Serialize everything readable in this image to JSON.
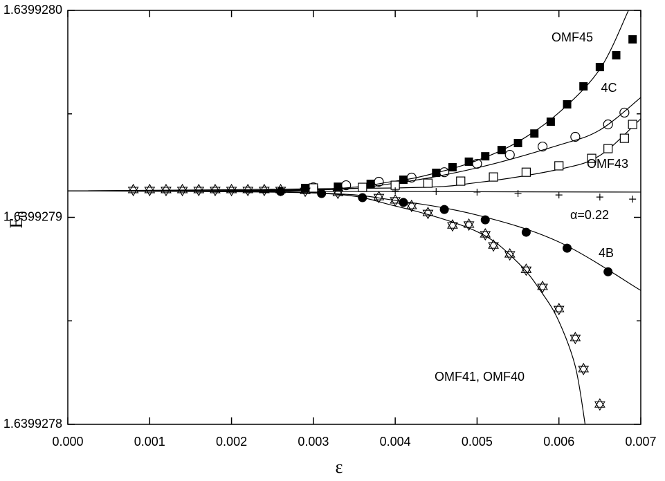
{
  "chart_data": {
    "type": "scatter",
    "xlabel": "ε",
    "ylabel": "E",
    "ylabel_sub": "0",
    "xlim": [
      0,
      0.007
    ],
    "ylim": [
      1.6399278,
      1.639928
    ],
    "xticks": [
      {
        "value": 0,
        "label": "0.000"
      },
      {
        "value": 0.001,
        "label": "0.001"
      },
      {
        "value": 0.002,
        "label": "0.002"
      },
      {
        "value": 0.003,
        "label": "0.003"
      },
      {
        "value": 0.004,
        "label": "0.004"
      },
      {
        "value": 0.005,
        "label": "0.005"
      },
      {
        "value": 0.006,
        "label": "0.006"
      },
      {
        "value": 0.007,
        "label": "0.007"
      }
    ],
    "yticks": [
      {
        "value": 1.6399278,
        "label": "1.6399278"
      },
      {
        "value": 1.6399279,
        "label": "1.6399279"
      },
      {
        "value": 1.639928,
        "label": "1.6399280"
      }
    ],
    "minor_yticks": [
      1.63992785,
      1.63992795
    ],
    "color": "#000000",
    "annotations": [
      "OMF45",
      "4C",
      "OMF43",
      "α=0.22",
      "4B",
      "OMF41, OMF40"
    ],
    "series": [
      {
        "marker": "filled-square",
        "x": [
          0.0029,
          0.0033,
          0.0037,
          0.0041,
          0.0045,
          0.0047,
          0.0049,
          0.0051,
          0.0053,
          0.0055,
          0.0057,
          0.0059,
          0.0061,
          0.0063,
          0.0065,
          0.0067,
          0.0069
        ],
        "values": [
          1.6399279142,
          1.6399279148,
          1.6399279162,
          1.6399279182,
          1.6399279215,
          1.6399279242,
          1.6399279269,
          1.6399279295,
          1.6399279325,
          1.6399279359,
          1.6399279405,
          1.6399279462,
          1.6399279546,
          1.6399279633,
          1.6399279726,
          1.6399279783,
          1.639927986
        ]
      },
      {
        "marker": "open-circle",
        "x": [
          0.003,
          0.0034,
          0.0038,
          0.0042,
          0.0046,
          0.005,
          0.0054,
          0.0058,
          0.0062,
          0.0066,
          0.0068
        ],
        "values": [
          1.6399279145,
          1.6399279155,
          1.6399279172,
          1.6399279192,
          1.6399279218,
          1.6399279259,
          1.6399279302,
          1.6399279342,
          1.6399279389,
          1.6399279449,
          1.6399279506
        ]
      },
      {
        "marker": "open-square",
        "x": [
          0.003,
          0.0036,
          0.004,
          0.0044,
          0.0048,
          0.0052,
          0.0056,
          0.006,
          0.0064,
          0.0066,
          0.0068,
          0.0069
        ],
        "values": [
          1.6399279142,
          1.6399279145,
          1.6399279155,
          1.6399279165,
          1.6399279175,
          1.6399279195,
          1.6399279218,
          1.6399279249,
          1.6399279285,
          1.6399279332,
          1.6399279382,
          1.6399279449
        ]
      },
      {
        "marker": "plus",
        "x": [
          0.004,
          0.0045,
          0.005,
          0.0055,
          0.006,
          0.0065,
          0.0069
        ],
        "values": [
          1.6399279128,
          1.6399279125,
          1.6399279122,
          1.6399279115,
          1.6399279108,
          1.6399279098,
          1.6399279088
        ]
      },
      {
        "marker": "filled-circle",
        "x": [
          0.0026,
          0.0031,
          0.0036,
          0.0041,
          0.0046,
          0.0051,
          0.0056,
          0.0061,
          0.0066
        ],
        "values": [
          1.6399279125,
          1.6399279115,
          1.6399279095,
          1.6399279072,
          1.6399279038,
          1.6399278988,
          1.6399278928,
          1.6399278851,
          1.6399278737
        ]
      },
      {
        "marker": "star",
        "x": [
          0.0008,
          0.001,
          0.0012,
          0.0014,
          0.0016,
          0.0018,
          0.002,
          0.0022,
          0.0024,
          0.0026,
          0.0029,
          0.0033,
          0.0038,
          0.004,
          0.0042,
          0.0044,
          0.0047,
          0.0049,
          0.0051,
          0.0052,
          0.0054,
          0.0056,
          0.0058,
          0.006,
          0.0062,
          0.0063,
          0.0065
        ],
        "values": [
          1.6399279132,
          1.6399279132,
          1.6399279132,
          1.6399279132,
          1.6399279132,
          1.6399279132,
          1.6399279132,
          1.6399279132,
          1.6399279132,
          1.6399279132,
          1.6399279128,
          1.6399279118,
          1.6399279098,
          1.6399279082,
          1.6399279055,
          1.6399279021,
          1.6399278961,
          1.6399278965,
          1.6399278918,
          1.6399278864,
          1.6399278821,
          1.6399278747,
          1.6399278664,
          1.6399278557,
          1.6399278417,
          1.6399278267,
          1.6399278096
        ]
      }
    ],
    "fits": [
      {
        "x": [
          0,
          0.003,
          0.004,
          0.0045,
          0.005,
          0.0055,
          0.006,
          0.0065,
          0.00685
        ],
        "values": [
          1.6399279128,
          1.6399279135,
          1.6399279175,
          1.6399279215,
          1.6399279275,
          1.6399279365,
          1.6399279506,
          1.6399279716,
          1.639928
        ]
      },
      {
        "x": [
          0,
          0.003,
          0.004,
          0.005,
          0.006,
          0.0065,
          0.007
        ],
        "values": [
          1.6399279128,
          1.6399279132,
          1.6399279165,
          1.6399279239,
          1.6399279349,
          1.6399279422,
          1.6399279579
        ]
      },
      {
        "x": [
          0,
          0.004,
          0.005,
          0.006,
          0.0065,
          0.007
        ],
        "values": [
          1.6399279128,
          1.6399279142,
          1.6399279168,
          1.6399279232,
          1.6399279299,
          1.6399279476
        ]
      },
      {
        "x": [
          0,
          0.007
        ],
        "values": [
          1.6399279128,
          1.6399279122
        ]
      },
      {
        "x": [
          0,
          0.003,
          0.004,
          0.005,
          0.006,
          0.007
        ],
        "values": [
          1.6399279128,
          1.6399279118,
          1.6399279082,
          1.6399279011,
          1.6399278881,
          1.6399278647
        ]
      },
      {
        "x": [
          0,
          0.003,
          0.004,
          0.005,
          0.0055,
          0.0058,
          0.006,
          0.0062,
          0.00632
        ],
        "values": [
          1.6399279128,
          1.6399279118,
          1.6399279055,
          1.6399278931,
          1.6399278781,
          1.6399278631,
          1.6399278497,
          1.639927828,
          1.6399278
        ]
      }
    ]
  }
}
